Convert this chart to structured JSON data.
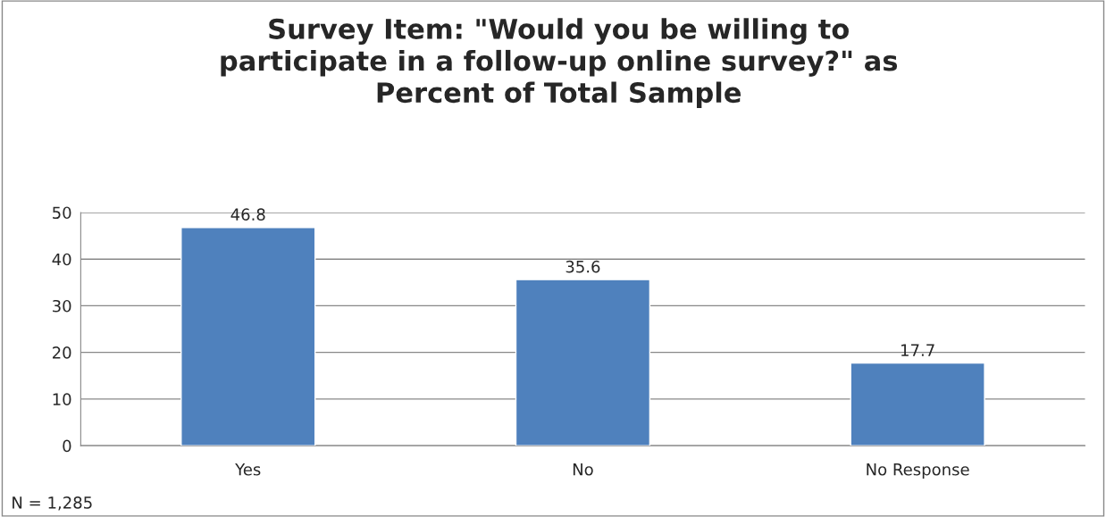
{
  "chart_data": {
    "type": "bar",
    "title": "Survey Item: \"Would you be willing to\nparticipate in a follow-up online survey?\" as\nPercent of Total Sample",
    "categories": [
      "Yes",
      "No",
      "No Response"
    ],
    "values": [
      46.8,
      35.6,
      17.7
    ],
    "color": "#4f81bd",
    "ylim": [
      0,
      50
    ],
    "yticks": [
      0,
      10,
      20,
      30,
      40,
      50
    ],
    "grid": "y",
    "data_labels": true,
    "annotations": [
      "N = 1,285"
    ]
  }
}
